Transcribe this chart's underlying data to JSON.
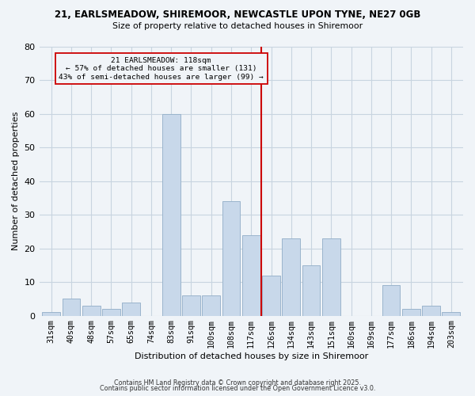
{
  "title_line1": "21, EARLSMEADOW, SHIREMOOR, NEWCASTLE UPON TYNE, NE27 0GB",
  "title_line2": "Size of property relative to detached houses in Shiremoor",
  "xlabel": "Distribution of detached houses by size in Shiremoor",
  "ylabel": "Number of detached properties",
  "bar_labels": [
    "31sqm",
    "40sqm",
    "48sqm",
    "57sqm",
    "65sqm",
    "74sqm",
    "83sqm",
    "91sqm",
    "100sqm",
    "108sqm",
    "117sqm",
    "126sqm",
    "134sqm",
    "143sqm",
    "151sqm",
    "160sqm",
    "169sqm",
    "177sqm",
    "186sqm",
    "194sqm",
    "203sqm"
  ],
  "bar_values": [
    1,
    5,
    3,
    2,
    4,
    0,
    60,
    6,
    6,
    34,
    24,
    12,
    23,
    15,
    23,
    0,
    0,
    9,
    2,
    3,
    1
  ],
  "bar_color": "#c8d8ea",
  "bar_edgecolor": "#9ab4cc",
  "vline_color": "#cc0000",
  "annotation_title": "21 EARLSMEADOW: 118sqm",
  "annotation_line1": "← 57% of detached houses are smaller (131)",
  "annotation_line2": "43% of semi-detached houses are larger (99) →",
  "annotation_box_edgecolor": "#cc0000",
  "ylim": [
    0,
    80
  ],
  "yticks": [
    0,
    10,
    20,
    30,
    40,
    50,
    60,
    70,
    80
  ],
  "footer_line1": "Contains HM Land Registry data © Crown copyright and database right 2025.",
  "footer_line2": "Contains public sector information licensed under the Open Government Licence v3.0.",
  "background_color": "#f0f4f8",
  "grid_color": "#c8d4e0"
}
